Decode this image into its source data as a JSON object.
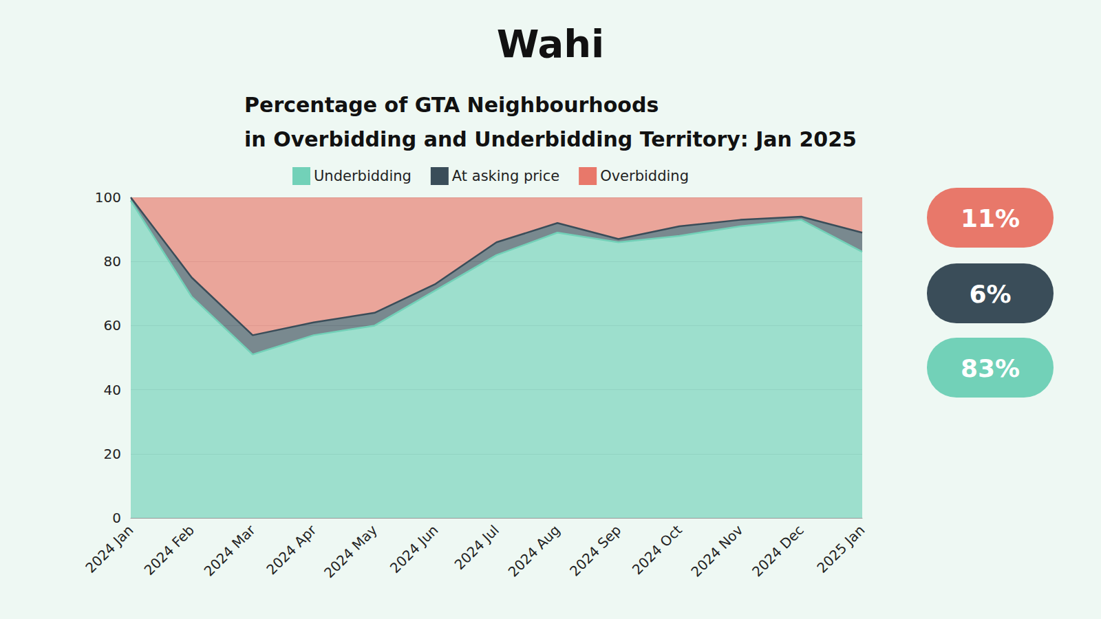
{
  "logo": "Wahi",
  "chart_data": {
    "type": "area",
    "title": "Percentage of GTA Neighbourhoods\nin Overbidding and Underbidding Territory: Jan 2025",
    "categories": [
      "2024 Jan",
      "2024 Feb",
      "2024 Mar",
      "2024 Apr",
      "2024 May",
      "2024 Jun",
      "2024 Jul",
      "2024 Aug",
      "2024 Sep",
      "2024 Oct",
      "2024 Nov",
      "2024 Dec",
      "2025 Jan"
    ],
    "series": [
      {
        "name": "Underbidding",
        "color": "#72d1b8",
        "values": [
          99,
          69,
          51,
          57,
          60,
          71,
          82,
          89,
          86,
          88,
          91,
          93,
          83
        ]
      },
      {
        "name": "At asking price",
        "color": "#3a4d59",
        "values": [
          1,
          6,
          6,
          4,
          4,
          2,
          4,
          3,
          1,
          3,
          2,
          1,
          6
        ]
      },
      {
        "name": "Overbidding",
        "color": "#e8786a",
        "values": [
          0,
          25,
          43,
          39,
          36,
          27,
          14,
          8,
          13,
          9,
          7,
          6,
          11
        ]
      }
    ],
    "stacked": true,
    "ylim": [
      0,
      100
    ],
    "yticks": [
      0,
      20,
      40,
      60,
      80,
      100
    ],
    "grid": true,
    "legend": "top",
    "callouts": [
      {
        "label": "11%",
        "color": "#e8786a"
      },
      {
        "label": "6%",
        "color": "#3a4d59"
      },
      {
        "label": "83%",
        "color": "#72d1b8"
      }
    ]
  }
}
